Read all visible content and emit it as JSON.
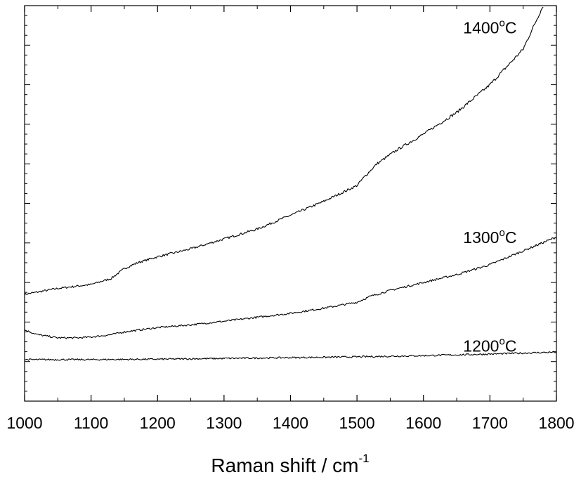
{
  "chart_data": {
    "type": "line",
    "title": "",
    "xlabel": "Raman shift / cm",
    "xlabel_superscript": "-1",
    "ylabel": "",
    "xlim": [
      1000,
      1800
    ],
    "ylim": [
      0,
      100
    ],
    "x_ticks": [
      1000,
      1100,
      1200,
      1300,
      1400,
      1500,
      1600,
      1700,
      1800
    ],
    "y_tick_labels": "none",
    "grid": false,
    "legend": "none (series labelled directly on the plot)",
    "line_color": "#000000",
    "series": [
      {
        "name": "1400°C",
        "label_main": "1400",
        "label_sup": "o",
        "label_tail": "C",
        "label_x": 1700,
        "label_y": 93,
        "x": [
          1000,
          1050,
          1100,
          1130,
          1150,
          1170,
          1200,
          1250,
          1300,
          1350,
          1400,
          1450,
          1500,
          1510,
          1530,
          1560,
          1600,
          1650,
          1700,
          1750,
          1780
        ],
        "y": [
          27,
          28.5,
          29.5,
          31,
          33.5,
          35,
          36.5,
          38.5,
          41,
          43.5,
          47,
          50.5,
          54.5,
          56.5,
          60,
          63.5,
          67.5,
          73,
          80,
          89,
          100
        ]
      },
      {
        "name": "1300°C",
        "label_main": "1300",
        "label_sup": "o",
        "label_tail": "C",
        "label_x": 1700,
        "label_y": 40,
        "x": [
          1000,
          1020,
          1050,
          1080,
          1100,
          1130,
          1150,
          1200,
          1250,
          1300,
          1350,
          1400,
          1450,
          1500,
          1520,
          1550,
          1600,
          1650,
          1700,
          1750,
          1800
        ],
        "y": [
          18,
          16.8,
          16,
          16,
          16.2,
          16.8,
          17.5,
          18.6,
          19.3,
          20.2,
          21.2,
          22.2,
          23.5,
          25,
          26.5,
          28,
          30,
          32,
          34.5,
          38,
          41.5
        ]
      },
      {
        "name": "1200°C",
        "label_main": "1200",
        "label_sup": "o",
        "label_tail": "C",
        "label_x": 1700,
        "label_y": 12.5,
        "x": [
          1000,
          1100,
          1200,
          1300,
          1400,
          1500,
          1600,
          1700,
          1800
        ],
        "y": [
          10.5,
          10.5,
          10.6,
          10.8,
          11,
          11.2,
          11.5,
          11.9,
          12.4
        ]
      }
    ]
  }
}
